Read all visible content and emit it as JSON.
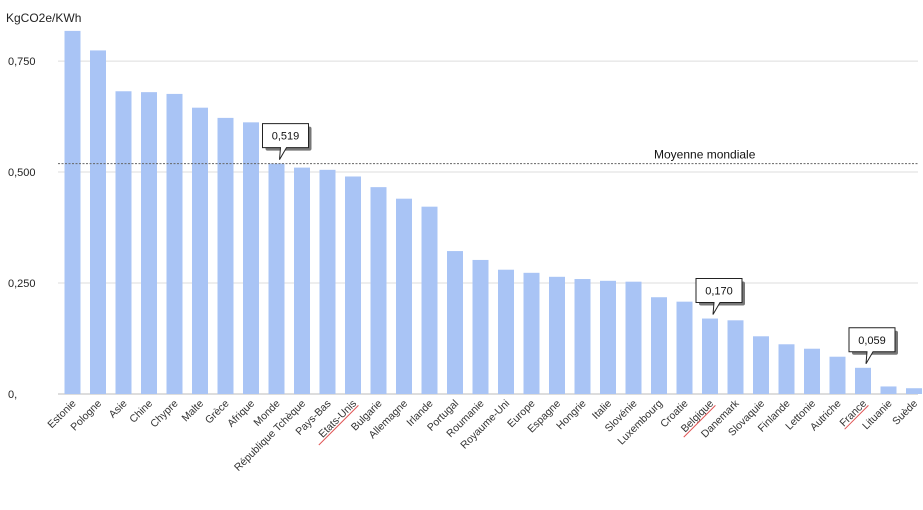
{
  "chart_data": {
    "type": "bar",
    "ylabel": "KgCO2e/KWh",
    "ylim": [
      0,
      0.82
    ],
    "yticks": [
      {
        "value": 0,
        "label": "0,"
      },
      {
        "value": 0.25,
        "label": "0,250"
      },
      {
        "value": 0.5,
        "label": "0,500"
      },
      {
        "value": 0.75,
        "label": "0,750"
      }
    ],
    "grid": true,
    "bar_color": "#a9c4f5",
    "categories": [
      "Estonie",
      "Pologne",
      "Asie",
      "Chine",
      "Chypre",
      "Malte",
      "Grèce",
      "Afrique",
      "Monde",
      "République Tchèque",
      "Pays-Bas",
      "Etats-Unis",
      "Bulgarie",
      "Allemagne",
      "Irlande",
      "Portugal",
      "Roumanie",
      "Royaume-Uni",
      "Europe",
      "Espagne",
      "Hongrie",
      "Italie",
      "Slovénie",
      "Luxembourg",
      "Croatie",
      "Belgique",
      "Danemark",
      "Slovaquie",
      "Finlande",
      "Lettonie",
      "Autriche",
      "France",
      "Lituanie",
      "Suède"
    ],
    "values": [
      0.818,
      0.774,
      0.682,
      0.68,
      0.676,
      0.645,
      0.622,
      0.612,
      0.519,
      0.51,
      0.505,
      0.49,
      0.466,
      0.44,
      0.422,
      0.322,
      0.302,
      0.28,
      0.273,
      0.264,
      0.259,
      0.255,
      0.253,
      0.218,
      0.208,
      0.17,
      0.166,
      0.13,
      0.112,
      0.102,
      0.084,
      0.059,
      0.017,
      0.013
    ],
    "reference_line": {
      "value": 0.519,
      "label": "Moyenne mondiale"
    },
    "callouts": [
      {
        "category": "Monde",
        "label": "0,519"
      },
      {
        "category": "Belgique",
        "label": "0,170"
      },
      {
        "category": "France",
        "label": "0,059"
      }
    ],
    "underlined_categories": [
      "Etats-Unis",
      "Belgique",
      "France"
    ]
  }
}
